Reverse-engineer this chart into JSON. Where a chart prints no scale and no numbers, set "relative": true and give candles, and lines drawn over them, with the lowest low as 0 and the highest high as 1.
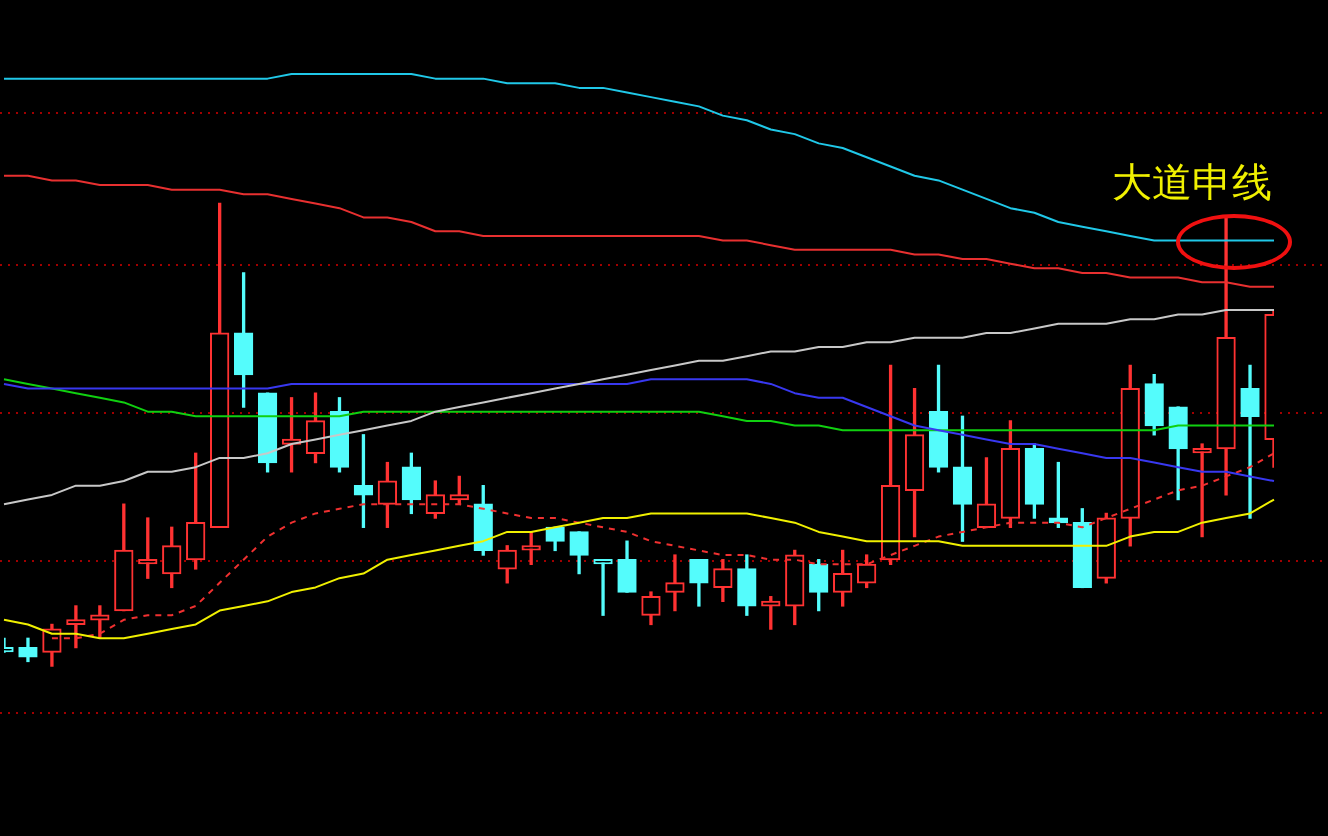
{
  "chart_data": {
    "type": "candlestick",
    "relative": true,
    "annotations": [
      "大道申线"
    ],
    "ref_lines": [
      {
        "axis": "y",
        "value": -0.1,
        "color": "#a00000",
        "line_style": "dotted"
      },
      {
        "axis": "y",
        "value": 0.23,
        "color": "#a00000",
        "line_style": "dotted"
      },
      {
        "axis": "y",
        "value": 0.55,
        "color": "#a00000",
        "line_style": "dotted"
      },
      {
        "axis": "y",
        "value": 0.87,
        "color": "#a00000",
        "line_style": "dotted"
      },
      {
        "axis": "y",
        "value": 1.2,
        "color": "#a00000",
        "line_style": "dotted"
      }
    ],
    "categories": [
      null,
      null,
      null,
      null,
      null,
      null,
      null,
      null,
      null,
      null,
      null,
      null,
      null,
      null,
      null,
      null,
      null,
      null,
      null,
      null,
      null,
      null,
      null,
      null,
      null,
      null,
      null,
      null,
      null,
      null,
      null,
      null,
      null,
      null,
      null,
      null,
      null,
      null,
      null,
      null,
      null,
      null,
      null,
      null,
      null,
      null,
      null,
      null,
      null,
      null,
      null,
      null,
      null,
      null
    ],
    "ohlc": [
      [
        0.04,
        0.06,
        0.03,
        0.04
      ],
      [
        0.04,
        0.06,
        0.01,
        0.02
      ],
      [
        0.03,
        0.09,
        0,
        0.08
      ],
      [
        0.09,
        0.13,
        0.04,
        0.1
      ],
      [
        0.1,
        0.13,
        0.06,
        0.11
      ],
      [
        0.12,
        0.35,
        0.12,
        0.25
      ],
      [
        0.23,
        0.32,
        0.19,
        0.23
      ],
      [
        0.2,
        0.3,
        0.17,
        0.26
      ],
      [
        0.23,
        0.46,
        0.21,
        0.31
      ],
      [
        0.3,
        1,
        0.3,
        0.72
      ],
      [
        0.72,
        0.85,
        0.56,
        0.63
      ],
      [
        0.59,
        0.59,
        0.42,
        0.44
      ],
      [
        0.48,
        0.58,
        0.42,
        0.49
      ],
      [
        0.46,
        0.59,
        0.44,
        0.53
      ],
      [
        0.55,
        0.58,
        0.42,
        0.43
      ],
      [
        0.39,
        0.5,
        0.3,
        0.37
      ],
      [
        0.35,
        0.44,
        0.3,
        0.4
      ],
      [
        0.43,
        0.46,
        0.33,
        0.36
      ],
      [
        0.33,
        0.4,
        0.32,
        0.37
      ],
      [
        0.36,
        0.41,
        0.35,
        0.37
      ],
      [
        0.35,
        0.39,
        0.24,
        0.25
      ],
      [
        0.21,
        0.26,
        0.18,
        0.25
      ],
      [
        0.26,
        0.29,
        0.22,
        0.26
      ],
      [
        0.3,
        0.3,
        0.25,
        0.27
      ],
      [
        0.29,
        0.29,
        0.2,
        0.24
      ],
      [
        0.23,
        0.23,
        0.11,
        0.23
      ],
      [
        0.23,
        0.27,
        0.16,
        0.16
      ],
      [
        0.11,
        0.16,
        0.09,
        0.15
      ],
      [
        0.16,
        0.24,
        0.12,
        0.18
      ],
      [
        0.23,
        0.23,
        0.13,
        0.18
      ],
      [
        0.17,
        0.23,
        0.14,
        0.21
      ],
      [
        0.21,
        0.24,
        0.11,
        0.13
      ],
      [
        0.13,
        0.15,
        0.08,
        0.14
      ],
      [
        0.13,
        0.25,
        0.09,
        0.24
      ],
      [
        0.22,
        0.23,
        0.12,
        0.16
      ],
      [
        0.16,
        0.25,
        0.13,
        0.2
      ],
      [
        0.18,
        0.24,
        0.17,
        0.22
      ],
      [
        0.23,
        0.65,
        0.22,
        0.39
      ],
      [
        0.38,
        0.6,
        0.28,
        0.5
      ],
      [
        0.55,
        0.65,
        0.42,
        0.43
      ],
      [
        0.43,
        0.54,
        0.27,
        0.35
      ],
      [
        0.3,
        0.45,
        0.3,
        0.35
      ],
      [
        0.32,
        0.53,
        0.3,
        0.47
      ],
      [
        0.47,
        0.48,
        0.32,
        0.35
      ],
      [
        0.32,
        0.44,
        0.3,
        0.31
      ],
      [
        0.31,
        0.34,
        0.17,
        0.17
      ],
      [
        0.19,
        0.33,
        0.18,
        0.32
      ],
      [
        0.32,
        0.65,
        0.26,
        0.6
      ],
      [
        0.61,
        0.63,
        0.5,
        0.52
      ],
      [
        0.56,
        0.56,
        0.36,
        0.47
      ],
      [
        0.47,
        0.48,
        0.28,
        0.47
      ],
      [
        0.47,
        0.97,
        0.37,
        0.71
      ],
      [
        0.6,
        0.65,
        0.32,
        0.54
      ],
      [
        0.49,
        0.77,
        0.43,
        0.76
      ]
    ],
    "colors": [
      "#54fcfc",
      "#54fcfc",
      "#ff3232",
      "#ff3232",
      "#ff3232",
      "#ff3232",
      "#ff3232",
      "#ff3232",
      "#ff3232",
      "#ff3232",
      "#54fcfc",
      "#54fcfc",
      "#ff3232",
      "#ff3232",
      "#54fcfc",
      "#54fcfc",
      "#ff3232",
      "#54fcfc",
      "#ff3232",
      "#ff3232",
      "#54fcfc",
      "#ff3232",
      "#ff3232",
      "#54fcfc",
      "#54fcfc",
      "#54fcfc",
      "#54fcfc",
      "#ff3232",
      "#ff3232",
      "#54fcfc",
      "#ff3232",
      "#54fcfc",
      "#ff3232",
      "#ff3232",
      "#54fcfc",
      "#ff3232",
      "#ff3232",
      "#ff3232",
      "#ff3232",
      "#54fcfc",
      "#54fcfc",
      "#ff3232",
      "#ff3232",
      "#54fcfc",
      "#54fcfc",
      "#54fcfc",
      "#ff3232",
      "#ff3232",
      "#54fcfc",
      "#54fcfc",
      "#ff3232",
      "#ff3232",
      "#54fcfc",
      "#ff3232"
    ],
    "series": [
      {
        "type": "line",
        "color": "#20c8e8",
        "values": [
          1.27,
          1.27,
          1.27,
          1.27,
          1.27,
          1.27,
          1.27,
          1.27,
          1.27,
          1.27,
          1.27,
          1.27,
          1.28,
          1.28,
          1.28,
          1.28,
          1.28,
          1.28,
          1.27,
          1.27,
          1.27,
          1.26,
          1.26,
          1.26,
          1.25,
          1.25,
          1.24,
          1.23,
          1.22,
          1.21,
          1.19,
          1.18,
          1.16,
          1.15,
          1.13,
          1.12,
          1.1,
          1.08,
          1.06,
          1.05,
          1.03,
          1.01,
          0.99,
          0.98,
          0.96,
          0.95,
          0.94,
          0.93,
          0.92,
          0.92,
          0.92,
          0.92,
          0.92,
          0.92
        ]
      },
      {
        "type": "line",
        "color": "#e83030",
        "values": [
          1.06,
          1.06,
          1.05,
          1.05,
          1.04,
          1.04,
          1.04,
          1.03,
          1.03,
          1.03,
          1.02,
          1.02,
          1.01,
          1.0,
          0.99,
          0.97,
          0.97,
          0.96,
          0.94,
          0.94,
          0.93,
          0.93,
          0.93,
          0.93,
          0.93,
          0.93,
          0.93,
          0.93,
          0.93,
          0.93,
          0.92,
          0.92,
          0.91,
          0.9,
          0.9,
          0.9,
          0.9,
          0.9,
          0.89,
          0.89,
          0.88,
          0.88,
          0.87,
          0.86,
          0.86,
          0.85,
          0.85,
          0.84,
          0.84,
          0.84,
          0.83,
          0.83,
          0.82,
          0.82
        ]
      },
      {
        "type": "line",
        "color": "#c8c8c8",
        "values": [
          0.35,
          0.36,
          0.37,
          0.39,
          0.39,
          0.4,
          0.42,
          0.42,
          0.43,
          0.45,
          0.45,
          0.46,
          0.48,
          0.49,
          0.5,
          0.51,
          0.52,
          0.53,
          0.55,
          0.56,
          0.57,
          0.58,
          0.59,
          0.6,
          0.61,
          0.62,
          0.63,
          0.64,
          0.65,
          0.66,
          0.66,
          0.67,
          0.68,
          0.68,
          0.69,
          0.69,
          0.7,
          0.7,
          0.71,
          0.71,
          0.71,
          0.72,
          0.72,
          0.73,
          0.74,
          0.74,
          0.74,
          0.75,
          0.75,
          0.76,
          0.76,
          0.77,
          0.77,
          0.77
        ]
      },
      {
        "type": "line",
        "color": "#3838f0",
        "values": [
          0.61,
          0.6,
          0.6,
          0.6,
          0.6,
          0.6,
          0.6,
          0.6,
          0.6,
          0.6,
          0.6,
          0.6,
          0.61,
          0.61,
          0.61,
          0.61,
          0.61,
          0.61,
          0.61,
          0.61,
          0.61,
          0.61,
          0.61,
          0.61,
          0.61,
          0.61,
          0.61,
          0.62,
          0.62,
          0.62,
          0.62,
          0.62,
          0.61,
          0.59,
          0.58,
          0.58,
          0.56,
          0.54,
          0.52,
          0.51,
          0.5,
          0.49,
          0.48,
          0.48,
          0.47,
          0.46,
          0.45,
          0.45,
          0.44,
          0.43,
          0.42,
          0.42,
          0.41,
          0.4
        ]
      },
      {
        "type": "line",
        "color": "#10d010",
        "values": [
          0.62,
          0.61,
          0.6,
          0.59,
          0.58,
          0.57,
          0.55,
          0.55,
          0.54,
          0.54,
          0.54,
          0.54,
          0.54,
          0.54,
          0.54,
          0.55,
          0.55,
          0.55,
          0.55,
          0.55,
          0.55,
          0.55,
          0.55,
          0.55,
          0.55,
          0.55,
          0.55,
          0.55,
          0.55,
          0.55,
          0.54,
          0.53,
          0.53,
          0.52,
          0.52,
          0.51,
          0.51,
          0.51,
          0.51,
          0.51,
          0.51,
          0.51,
          0.51,
          0.51,
          0.51,
          0.51,
          0.51,
          0.51,
          0.51,
          0.52,
          0.52,
          0.52,
          0.52,
          0.52
        ]
      },
      {
        "type": "line",
        "color": "#f0f000",
        "values": [
          0.1,
          0.09,
          0.07,
          0.07,
          0.06,
          0.06,
          0.07,
          0.08,
          0.09,
          0.12,
          0.13,
          0.14,
          0.16,
          0.17,
          0.19,
          0.2,
          0.23,
          0.24,
          0.25,
          0.26,
          0.27,
          0.29,
          0.29,
          0.3,
          0.31,
          0.32,
          0.32,
          0.33,
          0.33,
          0.33,
          0.33,
          0.33,
          0.32,
          0.31,
          0.29,
          0.28,
          0.27,
          0.27,
          0.27,
          0.27,
          0.26,
          0.26,
          0.26,
          0.26,
          0.26,
          0.26,
          0.26,
          0.28,
          0.29,
          0.29,
          0.31,
          0.32,
          0.33,
          0.36
        ]
      },
      {
        "type": "line",
        "color": "#f03030",
        "line_style": "dashed",
        "values": [
          null,
          null,
          0.06,
          0.06,
          0.07,
          0.1,
          0.11,
          0.11,
          0.13,
          0.18,
          0.23,
          0.28,
          0.31,
          0.33,
          0.34,
          0.35,
          0.35,
          0.35,
          0.35,
          0.35,
          0.34,
          0.33,
          0.32,
          0.32,
          0.31,
          0.3,
          0.29,
          0.27,
          0.26,
          0.25,
          0.24,
          0.24,
          0.23,
          0.23,
          0.22,
          0.22,
          0.22,
          0.24,
          0.26,
          0.28,
          0.29,
          0.3,
          0.31,
          0.31,
          0.31,
          0.3,
          0.32,
          0.34,
          0.36,
          0.38,
          0.39,
          0.41,
          0.43,
          0.46
        ]
      }
    ]
  }
}
